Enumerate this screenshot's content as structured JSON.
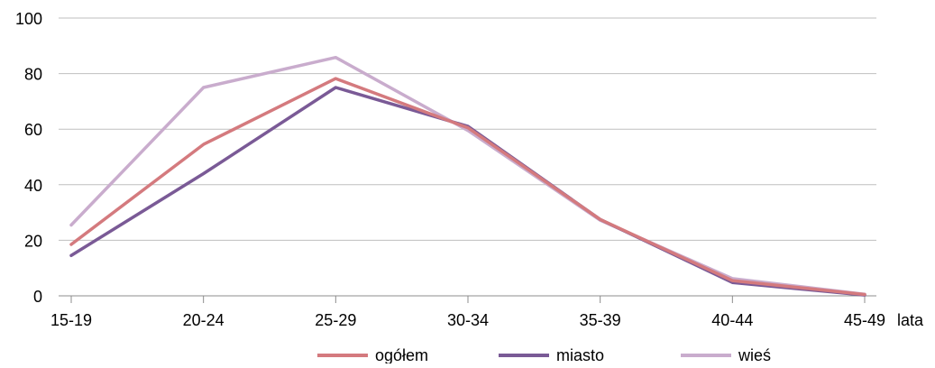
{
  "chart_data": {
    "type": "line",
    "title": "",
    "xlabel": "lata",
    "ylabel": "",
    "categories": [
      "15-19",
      "20-24",
      "25-29",
      "30-34",
      "35-39",
      "40-44",
      "45-49"
    ],
    "ylim": [
      0,
      100
    ],
    "yticks": [
      0,
      20,
      40,
      60,
      80,
      100
    ],
    "grid": true,
    "legend_position": "bottom",
    "series": [
      {
        "name": "ogółem",
        "color": "#D47A7E",
        "values": [
          18.5,
          54.5,
          78.2,
          60.5,
          27.5,
          5.5,
          0.5
        ]
      },
      {
        "name": "miasto",
        "color": "#7A5A96",
        "values": [
          14.5,
          44.0,
          75.0,
          61.0,
          27.5,
          4.8,
          0.3
        ]
      },
      {
        "name": "wieś",
        "color": "#C9ACCD",
        "values": [
          25.5,
          75.0,
          85.8,
          59.5,
          27.2,
          6.2,
          0.6
        ]
      }
    ]
  }
}
